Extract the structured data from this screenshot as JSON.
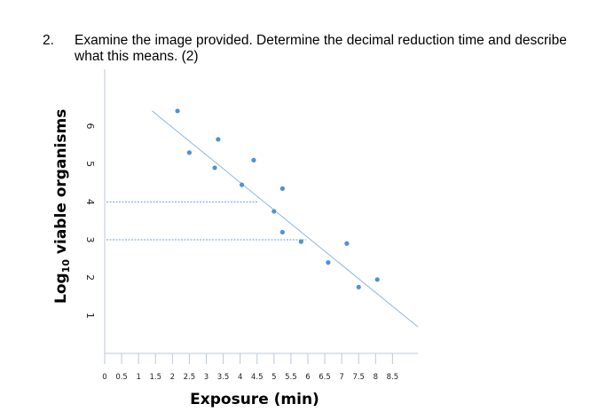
{
  "question": {
    "number": "2.",
    "text": "Examine the image provided. Determine the decimal reduction time and describe what this means. (2)"
  },
  "chart_data": {
    "type": "scatter",
    "xlabel": "Exposure (min)",
    "ylabel_main": "Log",
    "ylabel_sub": "10",
    "ylabel_rest": " viable organisms",
    "xlim": [
      0,
      9.25
    ],
    "ylim": [
      0,
      7.5
    ],
    "x_ticks": [
      "0",
      "0.5",
      "1",
      "1.5",
      "2",
      "2.5",
      "3",
      "3.5",
      "4",
      "4.5",
      "5",
      "5.5",
      "6",
      "6.5",
      "7",
      "7.5",
      "8",
      "8.5"
    ],
    "y_ticks": [
      "1",
      "2",
      "3",
      "4",
      "5",
      "6"
    ],
    "points": [
      {
        "x": 2.15,
        "y": 6.4
      },
      {
        "x": 2.5,
        "y": 5.3
      },
      {
        "x": 3.25,
        "y": 4.9
      },
      {
        "x": 3.35,
        "y": 5.65
      },
      {
        "x": 4.05,
        "y": 4.45
      },
      {
        "x": 4.4,
        "y": 5.1
      },
      {
        "x": 5.0,
        "y": 3.75
      },
      {
        "x": 5.25,
        "y": 4.35
      },
      {
        "x": 5.25,
        "y": 3.2
      },
      {
        "x": 5.8,
        "y": 2.95
      },
      {
        "x": 6.6,
        "y": 2.4
      },
      {
        "x": 7.15,
        "y": 2.9
      },
      {
        "x": 7.5,
        "y": 1.75
      },
      {
        "x": 8.05,
        "y": 1.95
      }
    ],
    "trendline": {
      "x1": 1.4,
      "y1": 6.4,
      "x2": 9.25,
      "y2": 0.7
    },
    "reference_lines": [
      {
        "y": 4.0,
        "x_end": 4.55
      },
      {
        "y": 3.0,
        "x_end": 5.95
      }
    ],
    "colors": {
      "point": "#4b94d4",
      "trendline": "#8fb6de",
      "reference": "#6f9fd4",
      "axis": "#bcc8d8"
    }
  }
}
